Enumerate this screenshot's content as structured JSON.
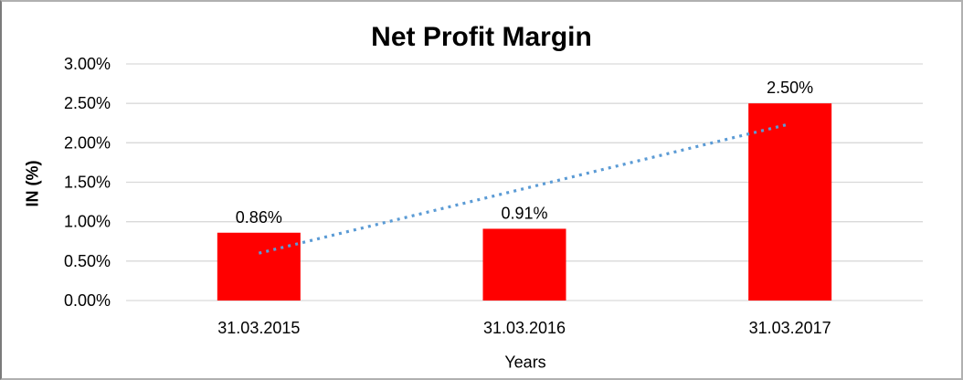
{
  "window": {
    "background": "#ffffff",
    "frame_border_color": "#b0b0b0"
  },
  "chart_data": {
    "type": "bar",
    "title": "Net Profit Margin",
    "xlabel": "Years",
    "ylabel": "IN (%)",
    "categories": [
      "31.03.2015",
      "31.03.2016",
      "31.03.2017"
    ],
    "values": [
      0.86,
      0.91,
      2.5
    ],
    "data_labels": [
      "0.86%",
      "0.91%",
      "2.50%"
    ],
    "ylim": [
      0,
      3
    ],
    "ytick_step": 0.5,
    "yticks": [
      "0.00%",
      "0.50%",
      "1.00%",
      "1.50%",
      "2.00%",
      "2.50%",
      "3.00%"
    ],
    "grid": true,
    "legend": "none",
    "bar_color": "#ff0000",
    "gridline_color": "#d9d9d9",
    "axis_line_color": "#d9d9d9",
    "label_color": "#000000",
    "trendline": {
      "type": "linear",
      "style": "dotted",
      "color": "#5b9bd5",
      "start_value": 0.6,
      "end_value": 2.24
    }
  }
}
